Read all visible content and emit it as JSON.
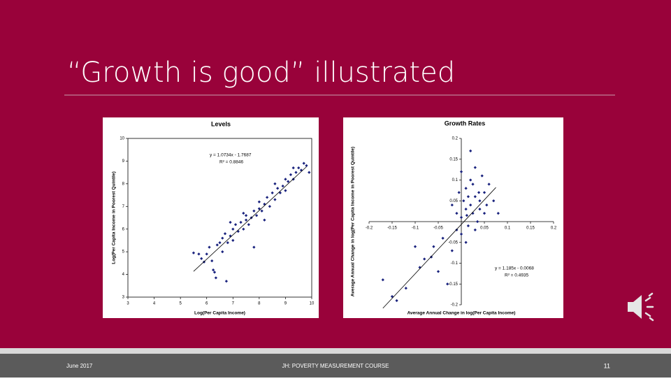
{
  "slide": {
    "title": "“Growth is good” illustrated",
    "footer_left": "June 2017",
    "footer_center": "JH: POVERTY MEASUREMENT COURSE",
    "page_number": "11"
  },
  "chart_data": [
    {
      "type": "scatter",
      "title": "Levels",
      "x_label": "Log(Per Capita Income)",
      "y_label": "Log(Per Capita Income in Poorest Quintile)",
      "xlim": [
        3,
        10
      ],
      "ylim": [
        3,
        10
      ],
      "xticks": [
        3,
        4,
        5,
        6,
        7,
        8,
        9,
        10
      ],
      "yticks": [
        3,
        4,
        5,
        6,
        7,
        8,
        9,
        10
      ],
      "color": "#1a237e",
      "axes_cross_zero": false,
      "annotations": [
        "y = 1.0734x - 1.7687",
        "R² = 0.8846"
      ],
      "trendline": {
        "slope": 1.0734,
        "intercept": -1.7687,
        "xrange": [
          5.5,
          9.8
        ]
      },
      "series": [
        {
          "name": "Levels",
          "x": [
            5.5,
            5.7,
            5.8,
            5.9,
            6.0,
            6.1,
            6.2,
            6.25,
            6.3,
            6.35,
            6.4,
            6.5,
            6.6,
            6.6,
            6.7,
            6.75,
            6.8,
            6.9,
            7.0,
            7.0,
            7.1,
            7.2,
            7.3,
            7.4,
            7.5,
            7.5,
            7.6,
            7.7,
            7.8,
            7.8,
            7.9,
            8.0,
            8.0,
            8.1,
            8.2,
            8.3,
            8.4,
            8.5,
            8.6,
            8.7,
            8.8,
            8.9,
            9.0,
            9.0,
            9.1,
            9.2,
            9.3,
            9.4,
            9.5,
            9.6,
            9.7,
            9.8,
            9.9,
            8.2,
            7.4,
            6.9,
            8.6,
            9.3
          ],
          "values": [
            4.95,
            4.9,
            4.7,
            4.55,
            4.9,
            5.2,
            4.6,
            4.2,
            4.1,
            3.85,
            5.3,
            5.4,
            5.6,
            5.0,
            5.8,
            3.7,
            5.4,
            5.7,
            6.0,
            5.5,
            6.2,
            5.9,
            6.3,
            6.0,
            6.4,
            6.6,
            6.2,
            6.5,
            6.8,
            5.2,
            6.6,
            6.9,
            7.2,
            6.8,
            7.1,
            7.4,
            7.0,
            7.6,
            7.3,
            7.8,
            7.6,
            7.9,
            8.2,
            7.7,
            8.1,
            8.4,
            8.2,
            8.5,
            8.7,
            8.6,
            8.9,
            8.8,
            8.5,
            6.4,
            6.7,
            6.3,
            8.0,
            8.7
          ]
        }
      ]
    },
    {
      "type": "scatter",
      "title": "Growth Rates",
      "x_label": "Average Annual Change in log(Per Capita Income)",
      "y_label": "Average Annual Change in log(Per Capita Income in Poorest Quintile)",
      "xlim": [
        -0.2,
        0.2
      ],
      "ylim": [
        -0.2,
        0.2
      ],
      "xticks": [
        -0.2,
        -0.15,
        -0.1,
        -0.05,
        0.05,
        0.1,
        0.15,
        0.2
      ],
      "yticks": [
        -0.2,
        -0.15,
        -0.1,
        -0.05,
        0.05,
        0.1,
        0.15,
        0.2
      ],
      "color": "#1a237e",
      "axes_cross_zero": true,
      "annotations": [
        "y = 1.185x - 0.0068",
        "R² = 0.4935"
      ],
      "trendline": {
        "slope": 1.185,
        "intercept": -0.0068,
        "xrange": [
          -0.17,
          0.075
        ]
      },
      "series": [
        {
          "name": "Growth Rates",
          "x": [
            -0.17,
            -0.15,
            -0.14,
            -0.12,
            -0.09,
            -0.08,
            -0.06,
            -0.05,
            -0.04,
            -0.03,
            -0.02,
            -0.01,
            -0.01,
            0,
            0,
            0.005,
            0.01,
            0.01,
            0.015,
            0.02,
            0.02,
            0.02,
            0.025,
            0.03,
            0.03,
            0.035,
            0.04,
            0.04,
            0.045,
            0.05,
            0.05,
            0.055,
            0.06,
            0.07,
            0.08,
            -0.005,
            0.01,
            -0.02,
            0,
            0.03,
            -0.1,
            -0.065,
            0.015,
            0.025,
            0.012,
            0.038
          ],
          "values": [
            -0.14,
            -0.18,
            -0.19,
            -0.16,
            -0.11,
            -0.09,
            -0.06,
            -0.12,
            -0.04,
            -0.15,
            -0.07,
            -0.02,
            0.02,
            0.01,
            -0.03,
            0.05,
            0.03,
            0.08,
            -0.01,
            0.04,
            0.1,
            0.17,
            0.02,
            0.06,
            0.13,
            0,
            0.05,
            0.03,
            0.11,
            0.02,
            0.07,
            0.04,
            0.09,
            0.05,
            0.02,
            0.07,
            -0.05,
            0.04,
            0.12,
            -0.02,
            -0.06,
            -0.085,
            0.06,
            0.09,
            0.015,
            0.07
          ]
        }
      ]
    }
  ]
}
